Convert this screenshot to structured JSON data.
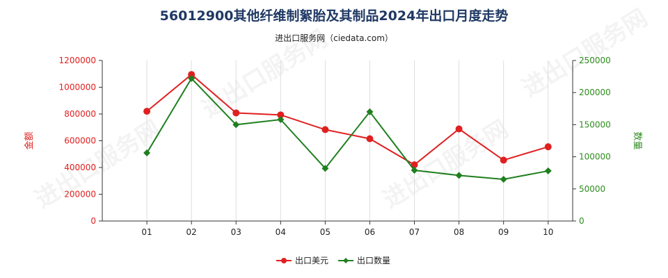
{
  "chart_data": {
    "type": "line",
    "title": "56012900其他纤维制絮胎及其制品2024年出口月度走势",
    "subtitle": "进出口服务网（ciedata.com）",
    "watermark": "进出口服务网",
    "categories": [
      "01",
      "02",
      "03",
      "04",
      "05",
      "06",
      "07",
      "08",
      "09",
      "10"
    ],
    "y_left": {
      "label": "金额",
      "range": [
        0,
        1200000
      ],
      "ticks": [
        0,
        200000,
        400000,
        600000,
        800000,
        1000000,
        1200000
      ],
      "tick_labels": [
        "0",
        "200000",
        "400000",
        "600000",
        "800000",
        "1000000",
        "1200000"
      ],
      "color": "#e02020"
    },
    "y_right": {
      "label": "数量",
      "range": [
        0,
        250000
      ],
      "ticks": [
        0,
        50000,
        100000,
        150000,
        200000,
        250000
      ],
      "tick_labels": [
        "0",
        "50000",
        "100000",
        "150000",
        "200000",
        "250000"
      ],
      "color": "#2e8b1e"
    },
    "series": [
      {
        "name": "出口美元",
        "axis": "left",
        "color": "#e02020",
        "marker": "circle",
        "values": [
          820000,
          1095000,
          808000,
          793000,
          683000,
          615000,
          420000,
          688000,
          455000,
          555000
        ]
      },
      {
        "name": "出口数量",
        "axis": "right",
        "color": "#1f7f1f",
        "marker": "diamond",
        "values": [
          106000,
          222000,
          150000,
          158000,
          82000,
          170000,
          79000,
          71000,
          65000,
          78000
        ]
      }
    ],
    "grid": "vertical",
    "legend_position": "bottom-center"
  }
}
